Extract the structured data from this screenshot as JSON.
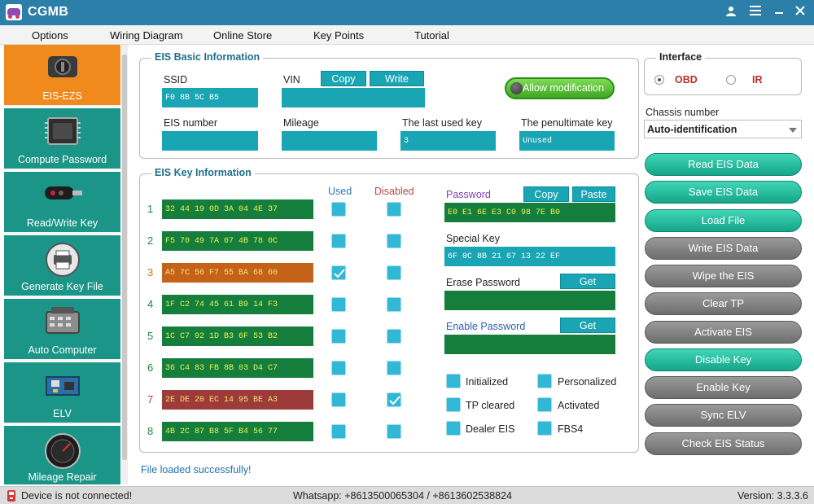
{
  "app": {
    "title": "CGMB"
  },
  "menu": [
    "Options",
    "Wiring Diagram",
    "Online Store",
    "Key Points",
    "Tutorial"
  ],
  "sidebar": {
    "items": [
      {
        "label": "EIS-EZS",
        "icon": "ignition-switch-icon",
        "active": true
      },
      {
        "label": "Compute Password",
        "icon": "chip-icon"
      },
      {
        "label": "Read/Write Key",
        "icon": "car-key-icon"
      },
      {
        "label": "Generate Key File",
        "icon": "printer-icon"
      },
      {
        "label": "Auto Computer",
        "icon": "ecu-module-icon"
      },
      {
        "label": "ELV",
        "icon": "circuit-board-icon"
      },
      {
        "label": "Mileage Repair",
        "icon": "speedometer-icon"
      }
    ]
  },
  "eis_basic": {
    "title": "EIS Basic Information",
    "ssid_label": "SSID",
    "ssid_value": "F0 8B 5C B5",
    "vin_label": "VIN",
    "vin_value": "",
    "copy_label": "Copy",
    "write_label": "Write",
    "allow_label": "Allow modification",
    "eis_number_label": "EIS number",
    "eis_number_value": "",
    "mileage_label": "Mileage",
    "mileage_value": "",
    "last_key_label": "The last used key",
    "last_key_value": "3",
    "penult_key_label": "The penultimate key",
    "penult_key_value": "Unused"
  },
  "eis_key": {
    "title": "EIS Key Information",
    "used_label": "Used",
    "disabled_label": "Disabled",
    "keys": [
      {
        "num": "1",
        "data": "32 44 19 0D 3A 04 4E 37",
        "used": false,
        "disabled": false
      },
      {
        "num": "2",
        "data": "F5 70 49 7A 07 4B 78 0C",
        "used": false,
        "disabled": false
      },
      {
        "num": "3",
        "data": "A5 7C 56 F7 55 BA 68 60",
        "used": true,
        "disabled": false
      },
      {
        "num": "4",
        "data": "1F C2 74 45 61 B9 14 F3",
        "used": false,
        "disabled": false
      },
      {
        "num": "5",
        "data": "1C C7 92 1D B3 6F 53 B2",
        "used": false,
        "disabled": false
      },
      {
        "num": "6",
        "data": "36 C4 83 FB 8B 03 D4 C7",
        "used": false,
        "disabled": false
      },
      {
        "num": "7",
        "data": "2E DE 20 EC 14 95 BE A3",
        "used": false,
        "disabled": true
      },
      {
        "num": "8",
        "data": "4B 2C 87 B8 5F B4 56 77",
        "used": false,
        "disabled": false
      }
    ],
    "password_label": "Password",
    "password_copy": "Copy",
    "password_paste": "Paste",
    "password_value": "E0 E1 6E E3 C0 98 7E B0",
    "special_key_label": "Special Key",
    "special_key_value": "6F 0C 8B 21 67 13 22 EF",
    "erase_label": "Erase Password",
    "erase_get": "Get",
    "erase_value": "",
    "enable_label": "Enable Password",
    "enable_get": "Get",
    "enable_value": "",
    "status": {
      "initialized": "Initialized",
      "personalized": "Personalized",
      "tp_cleared": "TP cleared",
      "activated": "Activated",
      "dealer_eis": "Dealer EIS",
      "fbs4": "FBS4"
    }
  },
  "interface": {
    "title": "Interface",
    "obd": "OBD",
    "ir": "IR",
    "selected": "OBD",
    "accent": "#b8302a"
  },
  "chassis": {
    "label": "Chassis number",
    "value": "Auto-identification"
  },
  "actions": [
    {
      "label": "Read EIS Data",
      "enabled": true
    },
    {
      "label": "Save EIS Data",
      "enabled": true
    },
    {
      "label": "Load File",
      "enabled": true
    },
    {
      "label": "Write EIS Data",
      "enabled": false
    },
    {
      "label": "Wipe the EIS",
      "enabled": false
    },
    {
      "label": "Clear TP",
      "enabled": false
    },
    {
      "label": "Activate EIS",
      "enabled": false
    },
    {
      "label": "Disable Key",
      "enabled": true
    },
    {
      "label": "Enable Key",
      "enabled": false
    },
    {
      "label": "Sync ELV",
      "enabled": false
    },
    {
      "label": "Check EIS Status",
      "enabled": false
    }
  ],
  "loaded_message": "File  loaded  successfully!",
  "statusbar": {
    "device": "Device is not connected!",
    "whatsapp": "Whatsapp: +8613500065304 / +8613602538824",
    "version": "Version: 3.3.3.6"
  },
  "colors": {
    "titlebar": "#2c7fa8",
    "sidebar": "#1a9587",
    "sidebar_active": "#f18a1c",
    "field": "#19a5b3",
    "key_green": "#157e3c",
    "key_orange": "#c4621a",
    "key_red": "#9d3a3a",
    "button_teal": "#16a58a",
    "button_gray": "#6e6e6e"
  }
}
